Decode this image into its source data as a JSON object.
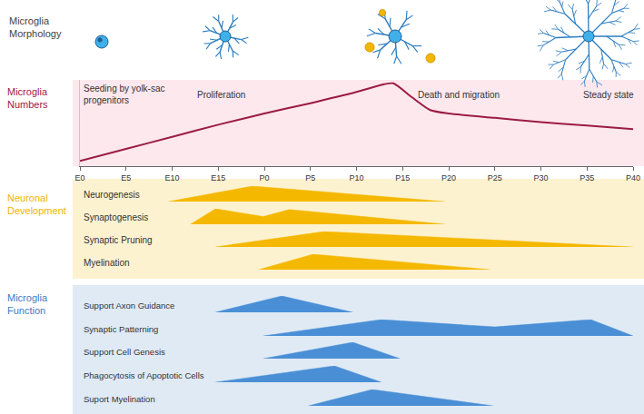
{
  "morphology": {
    "label": "Microglia Morphology"
  },
  "chart_data": [
    {
      "type": "line",
      "title": "Microglia Numbers",
      "color": "#9b1b45",
      "grid": false,
      "tick_labels": "x",
      "x": [
        0,
        5,
        10,
        15,
        20,
        25,
        30,
        33,
        34,
        36,
        38,
        40,
        45,
        50,
        55,
        60
      ],
      "values": [
        6,
        20,
        34,
        48,
        61,
        73,
        86,
        95,
        96,
        80,
        65,
        61,
        56,
        51,
        47,
        43
      ],
      "xlim": [
        0,
        60
      ],
      "ylim": [
        0,
        100
      ],
      "xticks": [
        {
          "value": 0,
          "label": "E0"
        },
        {
          "value": 5,
          "label": "E5"
        },
        {
          "value": 10,
          "label": "E10"
        },
        {
          "value": 15,
          "label": "E15"
        },
        {
          "value": 20,
          "label": "P0"
        },
        {
          "value": 25,
          "label": "P5"
        },
        {
          "value": 30,
          "label": "P10"
        },
        {
          "value": 35,
          "label": "P15"
        },
        {
          "value": 40,
          "label": "P20"
        },
        {
          "value": 45,
          "label": "P25"
        },
        {
          "value": 50,
          "label": "P30"
        },
        {
          "value": 55,
          "label": "P35"
        },
        {
          "value": 60,
          "label": "P40"
        }
      ],
      "annotations": [
        {
          "text": "Seeding by yolk-sac progenitors",
          "x": 0.2
        },
        {
          "text": "Proliferation",
          "x": 12.5
        },
        {
          "text": "Death and migration",
          "x": 36.5
        },
        {
          "text": "Steady state",
          "x": 54.4
        }
      ]
    },
    {
      "type": "area",
      "title": "Neuronal Development",
      "color": "#f5b800",
      "tick_labels": false,
      "xlim": [
        0,
        60
      ],
      "ylim": [
        0,
        1
      ],
      "series": [
        {
          "name": "Neurogenesis",
          "x": [
            9.6,
            18.7,
            39.6
          ],
          "values": [
            0,
            1,
            0
          ]
        },
        {
          "name": "Synaptogenesis",
          "x": [
            12.0,
            14.7,
            19.9,
            22.7,
            39.6
          ],
          "values": [
            0,
            1,
            0.5,
            0.95,
            0
          ]
        },
        {
          "name": "Synaptic Pruning",
          "x": [
            14.7,
            26.5,
            60
          ],
          "values": [
            0,
            1,
            0
          ]
        },
        {
          "name": "Myelination",
          "x": [
            19.4,
            25.3,
            44.5
          ],
          "values": [
            0,
            1,
            0
          ]
        }
      ]
    },
    {
      "type": "area",
      "title": "Microglia Function",
      "color": "#4a8fd6",
      "tick_labels": false,
      "xlim": [
        0,
        60
      ],
      "ylim": [
        0,
        1
      ],
      "series": [
        {
          "name": "Support Axon Guidance",
          "x": [
            14.7,
            21.9,
            29.6
          ],
          "values": [
            0,
            1,
            0
          ]
        },
        {
          "name": "Synaptic Patterning",
          "x": [
            19.9,
            32.7,
            45.0,
            55.4,
            60
          ],
          "values": [
            0,
            1,
            0.55,
            1,
            0
          ]
        },
        {
          "name": "Support Cell Genesis",
          "x": [
            19.9,
            29.6,
            34.7
          ],
          "values": [
            0,
            1,
            0
          ]
        },
        {
          "name": "Phagocytosis of Apoptotic Cells",
          "x": [
            14.7,
            27.6,
            32.7
          ],
          "values": [
            0,
            1,
            0
          ]
        },
        {
          "name": "Suport Myelination",
          "x": [
            24.8,
            31.7,
            44.8
          ],
          "values": [
            0,
            1,
            0
          ]
        }
      ]
    }
  ]
}
